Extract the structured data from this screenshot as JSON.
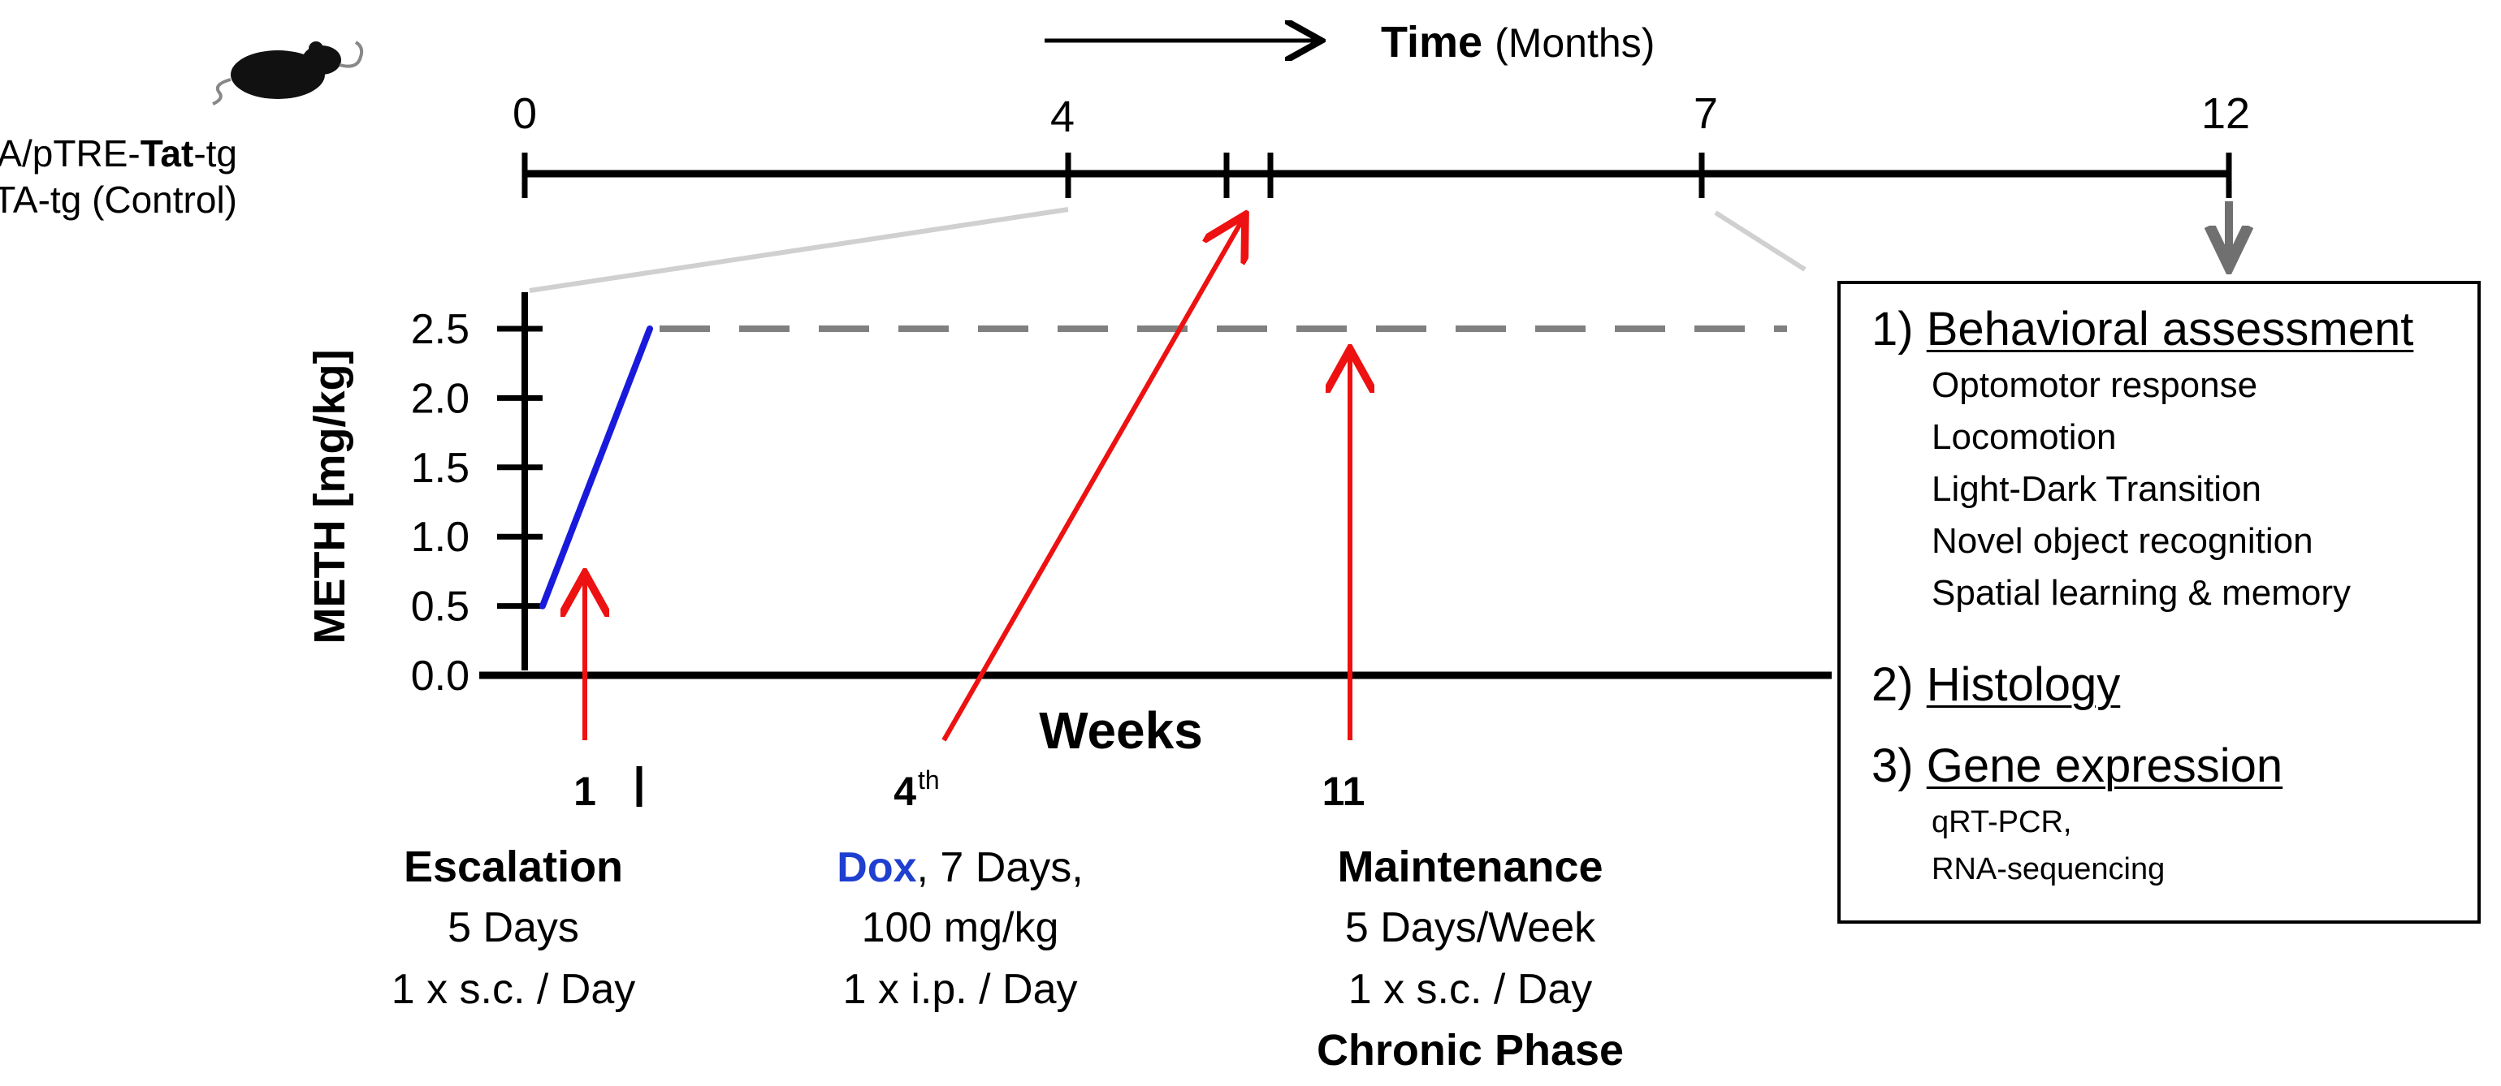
{
  "time_axis": {
    "title": "Time",
    "unit": "(Months)",
    "ticks": [
      "0",
      "4",
      "7",
      "12"
    ]
  },
  "mouse_lines": {
    "line1_pre": "GFAP rtTA/pTRE-",
    "line1_bold": "Tat",
    "line1_post": "-tg",
    "line2": "GFAP rtTA-tg (Control)"
  },
  "chart_data": {
    "type": "line",
    "xlabel": "Weeks",
    "ylabel": "METH [mg/kg]",
    "ylim": [
      0,
      2.7
    ],
    "y_ticks": [
      "2.5",
      "2.0",
      "1.5",
      "1.0",
      "0.5",
      "0.0"
    ],
    "escalation": {
      "x": [
        0,
        1
      ],
      "y": [
        0.5,
        2.5
      ],
      "color": "#1a1adc"
    },
    "maintenance": {
      "y": 2.5,
      "style": "dashed",
      "color": "#808080"
    }
  },
  "phases": {
    "escalation": {
      "week": "1",
      "title": "Escalation",
      "line1": "5 Days",
      "line2": "1 x s.c. / Day"
    },
    "dox": {
      "week": "4",
      "week_suffix": "th",
      "drug": "Dox",
      "line1_rest": ", 7 Days,",
      "line2": "100 mg/kg",
      "line3": "1 x i.p. / Day",
      "color": "#1f3fd0"
    },
    "maintenance": {
      "week": "11",
      "title": "Maintenance",
      "line1": "5 Days/Week",
      "line2": "1 x s.c. / Day",
      "line3": "Chronic Phase"
    }
  },
  "endpoints": {
    "behavioral": {
      "num": "1)",
      "title": "Behavioral assessment",
      "items": [
        "Optomotor response",
        "Locomotion",
        "Light-Dark Transition",
        "Novel object recognition",
        "Spatial learning & memory"
      ]
    },
    "histology": {
      "num": "2)",
      "title": "Histology"
    },
    "gene": {
      "num": "3)",
      "title": "Gene expression",
      "items": [
        "qRT-PCR,",
        "RNA-sequencing"
      ]
    }
  },
  "colors": {
    "arrow": "#ee1111",
    "accent_blue": "#1a1adc",
    "gray": "#808080",
    "light_gray": "#d0d0d0"
  }
}
